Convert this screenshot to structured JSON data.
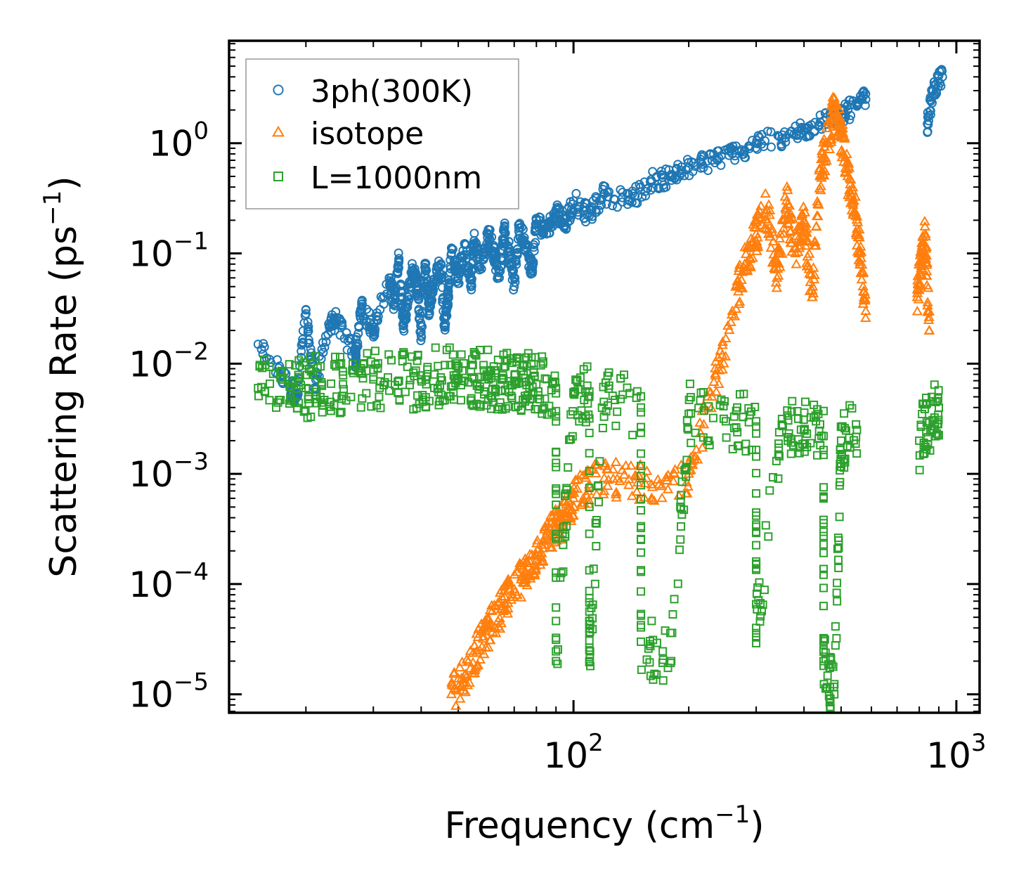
{
  "chart_data": {
    "type": "scatter",
    "title": "",
    "xlabel_main": "Frequency (cm",
    "xlabel_exp": "−1",
    "xlabel_close": ")",
    "ylabel_main": "Scattering Rate (ps",
    "ylabel_exp": "−1",
    "ylabel_close": ")",
    "xscale": "log",
    "yscale": "log",
    "xlim": [
      12.6,
      1150
    ],
    "ylim": [
      6.8e-06,
      8.5
    ],
    "grid": false,
    "legend_position": "top-left",
    "xticks": [
      {
        "value": 100,
        "base": "10",
        "exp": "2"
      },
      {
        "value": 1000,
        "base": "10",
        "exp": "3"
      }
    ],
    "yticks": [
      {
        "value": 1,
        "base": "10",
        "exp": "0"
      },
      {
        "value": 0.1,
        "base": "10",
        "exp": "−1"
      },
      {
        "value": 0.01,
        "base": "10",
        "exp": "−2"
      },
      {
        "value": 0.001,
        "base": "10",
        "exp": "−3"
      },
      {
        "value": 0.0001,
        "base": "10",
        "exp": "−4"
      },
      {
        "value": 1e-05,
        "base": "10",
        "exp": "−5"
      }
    ],
    "series": [
      {
        "name": "3ph(300K)",
        "marker": "circle",
        "color": "#1f77b4",
        "points": [
          [
            15,
            0.015
          ],
          [
            18,
            0.0065
          ],
          [
            19,
            0.005
          ],
          [
            20,
            0.031
          ],
          [
            21,
            0.006
          ],
          [
            23,
            0.022
          ],
          [
            24,
            0.025
          ],
          [
            27,
            0.011
          ],
          [
            27,
            0.013
          ],
          [
            28,
            0.033
          ],
          [
            30,
            0.02
          ],
          [
            33,
            0.06
          ],
          [
            34,
            0.035
          ],
          [
            35,
            0.09
          ],
          [
            36,
            0.022
          ],
          [
            37,
            0.04
          ],
          [
            38,
            0.07
          ],
          [
            39,
            0.05
          ],
          [
            40,
            0.018
          ],
          [
            41,
            0.08
          ],
          [
            42,
            0.03
          ],
          [
            43,
            0.055
          ],
          [
            45,
            0.08
          ],
          [
            46,
            0.022
          ],
          [
            47,
            0.04
          ],
          [
            48,
            0.1
          ],
          [
            50,
            0.06
          ],
          [
            52,
            0.12
          ],
          [
            54,
            0.05
          ],
          [
            55,
            0.13
          ],
          [
            57,
            0.075
          ],
          [
            60,
            0.15
          ],
          [
            62,
            0.1
          ],
          [
            64,
            0.06
          ],
          [
            66,
            0.16
          ],
          [
            68,
            0.11
          ],
          [
            70,
            0.05
          ],
          [
            72,
            0.17
          ],
          [
            75,
            0.12
          ],
          [
            78,
            0.07
          ],
          [
            80,
            0.2
          ],
          [
            85,
            0.15
          ],
          [
            90,
            0.25
          ],
          [
            95,
            0.18
          ],
          [
            100,
            0.3
          ],
          [
            110,
            0.22
          ],
          [
            120,
            0.35
          ],
          [
            140,
            0.3
          ],
          [
            160,
            0.45
          ],
          [
            180,
            0.5
          ],
          [
            200,
            0.6
          ],
          [
            230,
            0.7
          ],
          [
            260,
            0.8
          ],
          [
            300,
            1.0
          ],
          [
            350,
            1.1
          ],
          [
            400,
            1.3
          ],
          [
            450,
            1.6
          ],
          [
            500,
            1.8
          ],
          [
            550,
            2.2
          ],
          [
            580,
            2.5
          ],
          [
            840,
            1.5
          ],
          [
            870,
            3.0
          ],
          [
            920,
            4.0
          ]
        ]
      },
      {
        "name": "isotope",
        "marker": "triangle",
        "color": "#ff7f0e",
        "points": [
          [
            48,
            1e-05
          ],
          [
            52,
            1.5e-05
          ],
          [
            56,
            2.5e-05
          ],
          [
            60,
            4e-05
          ],
          [
            65,
            6e-05
          ],
          [
            70,
            9e-05
          ],
          [
            75,
            0.00013
          ],
          [
            80,
            0.00018
          ],
          [
            85,
            0.00025
          ],
          [
            90,
            0.00033
          ],
          [
            95,
            0.0004
          ],
          [
            100,
            0.0006
          ],
          [
            110,
            0.0008
          ],
          [
            130,
            0.0009
          ],
          [
            160,
            0.0008
          ],
          [
            200,
            0.001
          ],
          [
            230,
            0.005
          ],
          [
            260,
            0.03
          ],
          [
            280,
            0.08
          ],
          [
            300,
            0.15
          ],
          [
            320,
            0.25
          ],
          [
            340,
            0.06
          ],
          [
            360,
            0.3
          ],
          [
            380,
            0.1
          ],
          [
            400,
            0.2
          ],
          [
            420,
            0.04
          ],
          [
            440,
            0.5
          ],
          [
            460,
            1.0
          ],
          [
            480,
            2.0
          ],
          [
            500,
            1.2
          ],
          [
            520,
            0.5
          ],
          [
            540,
            0.3
          ],
          [
            560,
            0.1
          ],
          [
            580,
            0.03
          ],
          [
            790,
            0.04
          ],
          [
            810,
            0.08
          ],
          [
            830,
            0.15
          ],
          [
            850,
            0.02
          ]
        ]
      },
      {
        "name": "L=1000nm",
        "marker": "square",
        "color": "#2ca02c",
        "points": [
          [
            15,
            0.006
          ],
          [
            18,
            0.007
          ],
          [
            20,
            0.006
          ],
          [
            22,
            0.0065
          ],
          [
            25,
            0.0065
          ],
          [
            30,
            0.0072
          ],
          [
            35,
            0.007
          ],
          [
            40,
            0.0072
          ],
          [
            45,
            0.0075
          ],
          [
            50,
            0.0074
          ],
          [
            55,
            0.0073
          ],
          [
            60,
            0.0072
          ],
          [
            65,
            0.0072
          ],
          [
            70,
            0.007
          ],
          [
            75,
            0.0068
          ],
          [
            80,
            0.0065
          ],
          [
            90,
            0.006
          ],
          [
            100,
            0.0055
          ],
          [
            110,
            0.005
          ],
          [
            120,
            0.0045
          ],
          [
            150,
            0.004
          ],
          [
            200,
            0.0035
          ],
          [
            250,
            0.003
          ],
          [
            300,
            0.003
          ],
          [
            350,
            0.0028
          ],
          [
            400,
            0.0025
          ],
          [
            450,
            0.0022
          ],
          [
            500,
            0.002
          ],
          [
            550,
            0.0025
          ],
          [
            90,
            2e-05
          ],
          [
            110,
            2e-05
          ],
          [
            150,
            3e-05
          ],
          [
            180,
            2e-05
          ],
          [
            300,
            4e-05
          ],
          [
            450,
            2e-05
          ],
          [
            480,
            1e-05
          ],
          [
            800,
            0.002
          ],
          [
            850,
            0.003
          ],
          [
            900,
            0.004
          ]
        ]
      }
    ]
  }
}
